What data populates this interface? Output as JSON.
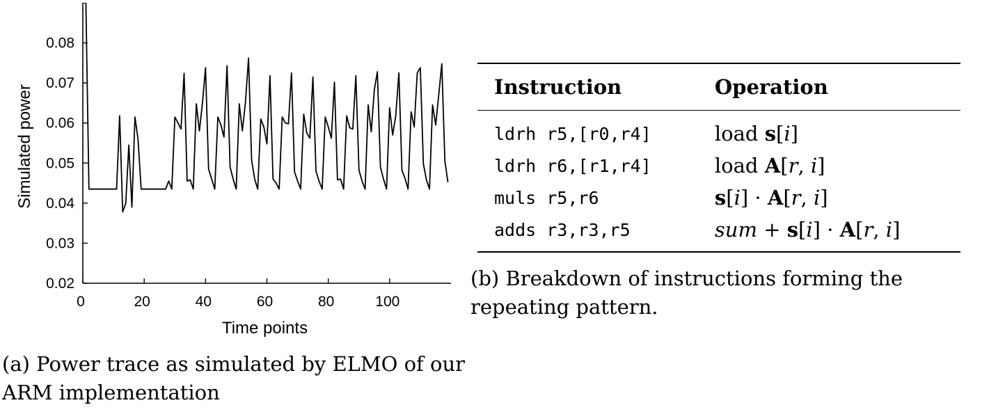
{
  "figure_a": {
    "caption": "(a) Power trace as simulated by ELMO of our ARM implementation"
  },
  "figure_b": {
    "caption": "(b) Breakdown of instructions forming the repeating pattern."
  },
  "table": {
    "headers": [
      "Instruction",
      "Operation"
    ],
    "rows": [
      {
        "instruction": "ldrh r5,[r0,r4]",
        "operation": "load s[i]"
      },
      {
        "instruction": "ldrh r6,[r1,r4]",
        "operation": "load A[r, i]"
      },
      {
        "instruction": "muls r5,r6",
        "operation": "s[i] · A[r, i]"
      },
      {
        "instruction": "adds r3,r3,r5",
        "operation": "sum + s[i] · A[r, i]"
      }
    ]
  },
  "chart_data": {
    "type": "line",
    "title": "",
    "xlabel": "Time points",
    "ylabel": "Simulated power",
    "xlim": [
      0,
      120
    ],
    "ylim": [
      0.02,
      0.09
    ],
    "xticks": [
      0,
      20,
      40,
      60,
      80,
      100
    ],
    "yticks": [
      0.02,
      0.03,
      0.04,
      0.05,
      0.06,
      0.07,
      0.08
    ],
    "ytick_labels": [
      "0.02",
      "0.03",
      "0.04",
      "0.05",
      "0.06",
      "0.07",
      "0.08"
    ],
    "grid": false,
    "series": [
      {
        "color": "#000000",
        "x": [
          0,
          1,
          2,
          3,
          4,
          5,
          6,
          7,
          8,
          9,
          10,
          11,
          12,
          13,
          14,
          15,
          16,
          17,
          18,
          19,
          20,
          21,
          22,
          23,
          24,
          25,
          26,
          27,
          28,
          29,
          30,
          31,
          32,
          33,
          34,
          35,
          36,
          37,
          38,
          39,
          40,
          41,
          42,
          43,
          44,
          45,
          46,
          47,
          48,
          49,
          50,
          51,
          52,
          53,
          54,
          55,
          56,
          57,
          58,
          59,
          60,
          61,
          62,
          63,
          64,
          65,
          66,
          67,
          68,
          69,
          70,
          71,
          72,
          73,
          74,
          75,
          76,
          77,
          78,
          79,
          80,
          81,
          82,
          83,
          84,
          85,
          86,
          87,
          88,
          89,
          90,
          91,
          92,
          93,
          94,
          95,
          96,
          97,
          98,
          99,
          100,
          101,
          102,
          103,
          104,
          105,
          106,
          107,
          108,
          109,
          110,
          111,
          112,
          113,
          114,
          115,
          116,
          117,
          118,
          119
        ],
        "y": [
          0.09,
          0.09,
          0.0435,
          0.0435,
          0.0435,
          0.0435,
          0.0435,
          0.0435,
          0.0435,
          0.0435,
          0.0435,
          0.0435,
          0.0618,
          0.0378,
          0.04,
          0.0545,
          0.039,
          0.0615,
          0.056,
          0.0435,
          0.0435,
          0.0435,
          0.0435,
          0.0435,
          0.0435,
          0.0435,
          0.0435,
          0.0435,
          0.0455,
          0.0435,
          0.0615,
          0.06,
          0.0585,
          0.0724,
          0.0455,
          0.0458,
          0.0435,
          0.0648,
          0.058,
          0.065,
          0.0738,
          0.0485,
          0.046,
          0.0435,
          0.0615,
          0.0595,
          0.0565,
          0.0743,
          0.049,
          0.046,
          0.0435,
          0.0648,
          0.058,
          0.065,
          0.0762,
          0.0508,
          0.046,
          0.0435,
          0.061,
          0.059,
          0.0548,
          0.0718,
          0.046,
          0.045,
          0.0435,
          0.0615,
          0.06,
          0.0598,
          0.0725,
          0.0478,
          0.0455,
          0.0435,
          0.0622,
          0.0575,
          0.0562,
          0.0715,
          0.048,
          0.0455,
          0.0435,
          0.0615,
          0.059,
          0.0562,
          0.0702,
          0.0458,
          0.046,
          0.0435,
          0.0618,
          0.0588,
          0.0585,
          0.0718,
          0.0482,
          0.0455,
          0.0435,
          0.0645,
          0.0578,
          0.0682,
          0.0728,
          0.049,
          0.046,
          0.0435,
          0.0638,
          0.057,
          0.0618,
          0.0725,
          0.0482,
          0.0462,
          0.0435,
          0.0628,
          0.059,
          0.0725,
          0.0738,
          0.0498,
          0.0458,
          0.0435,
          0.0645,
          0.0595,
          0.067,
          0.0748,
          0.0505,
          0.0452
        ]
      }
    ]
  }
}
